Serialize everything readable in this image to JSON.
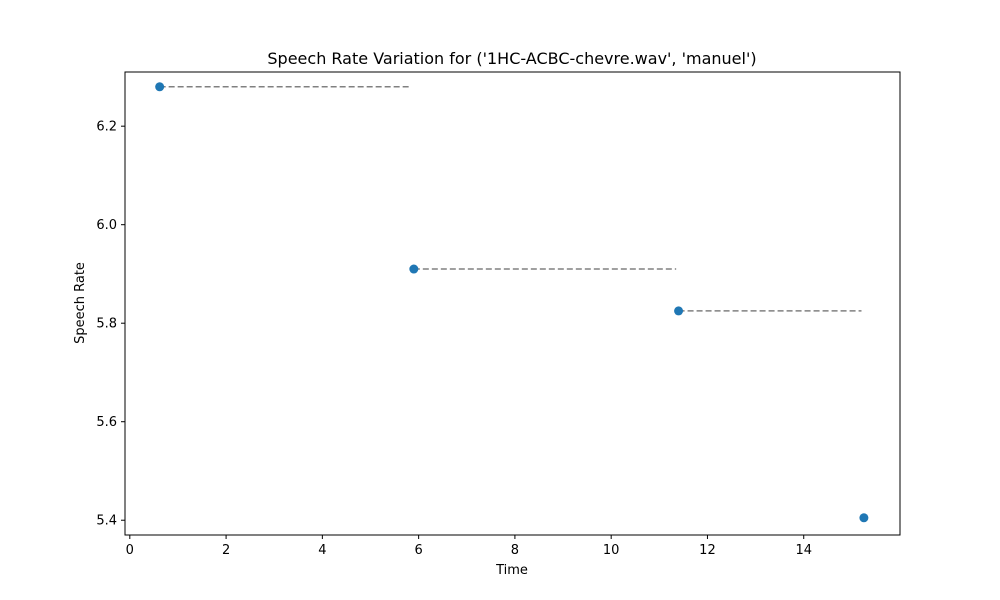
{
  "chart_data": {
    "type": "scatter",
    "title": "Speech Rate Variation for ('1HC-ACBC-chevre.wav', 'manuel')",
    "xlabel": "Time",
    "ylabel": "Speech Rate",
    "xlim": [
      -0.1,
      16.0
    ],
    "ylim": [
      5.37,
      6.31
    ],
    "xticks": [
      0,
      2,
      4,
      6,
      8,
      10,
      12,
      14
    ],
    "xtick_labels": [
      "0",
      "2",
      "4",
      "6",
      "8",
      "10",
      "12",
      "14"
    ],
    "yticks": [
      5.4,
      5.6,
      5.8,
      6.0,
      6.2
    ],
    "ytick_labels": [
      "5.4",
      "5.6",
      "5.8",
      "6.0",
      "6.2"
    ],
    "grid": false,
    "points": [
      {
        "x": 0.62,
        "y": 6.28
      },
      {
        "x": 5.9,
        "y": 5.91
      },
      {
        "x": 11.4,
        "y": 5.825
      },
      {
        "x": 15.25,
        "y": 5.405
      }
    ],
    "segments": [
      {
        "x0": 0.62,
        "x1": 5.85,
        "y": 6.28
      },
      {
        "x0": 5.9,
        "x1": 11.35,
        "y": 5.91
      },
      {
        "x0": 11.4,
        "x1": 15.2,
        "y": 5.825
      }
    ],
    "colors": {
      "point": "#1f77b4",
      "segment": "#808080"
    }
  }
}
